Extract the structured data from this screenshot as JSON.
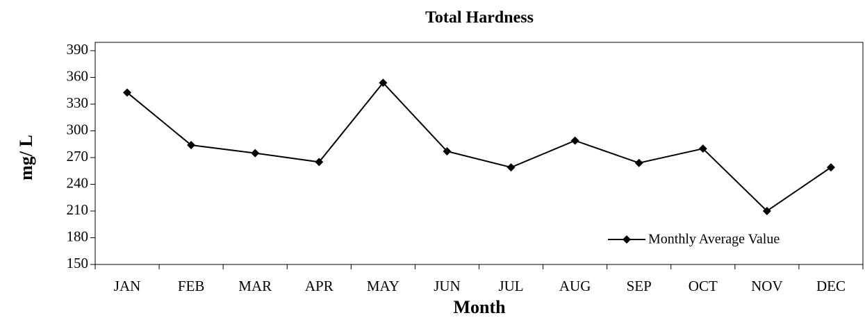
{
  "chart_data": {
    "type": "line",
    "title": "Total Hardness",
    "x_label": "Month",
    "y_label": "mg/ L",
    "categories": [
      "JAN",
      "FEB",
      "MAR",
      "APR",
      "MAY",
      "JUN",
      "JUL",
      "AUG",
      "SEP",
      "OCT",
      "NOV",
      "DEC"
    ],
    "series": [
      {
        "name": "Monthly Average Value",
        "color": "#000000",
        "values": [
          343,
          284,
          275,
          265,
          354,
          277,
          259,
          289,
          264,
          280,
          210,
          259
        ]
      }
    ],
    "ylim": [
      150,
      390
    ],
    "yticks": [
      150,
      180,
      210,
      240,
      270,
      300,
      330,
      360,
      390
    ],
    "legend": "lower right",
    "grid": false
  }
}
